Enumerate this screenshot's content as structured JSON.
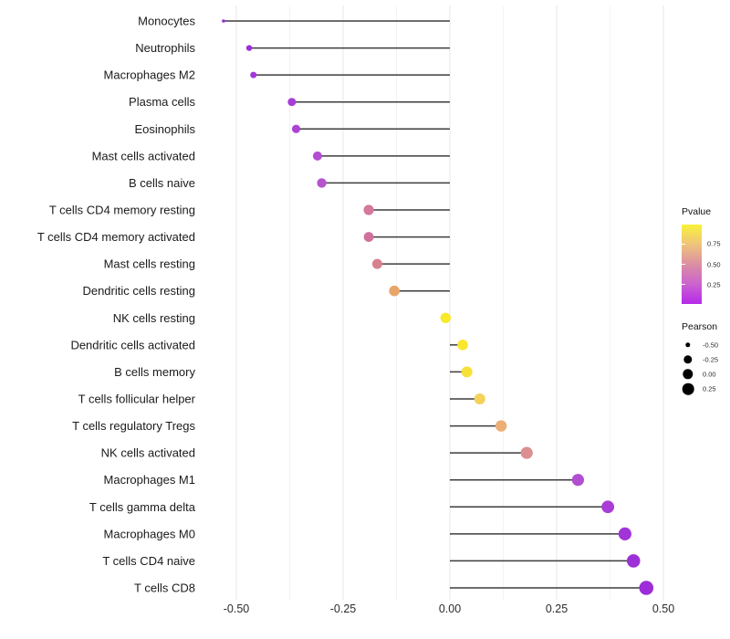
{
  "chart_data": {
    "type": "lollipop",
    "orientation": "horizontal",
    "title": "",
    "xlabel": "",
    "ylabel": "",
    "x_axis": {
      "tick_labels": [
        "-0.50",
        "-0.25",
        "0.00",
        "0.25",
        "0.50"
      ],
      "tick_values": [
        -0.5,
        -0.25,
        0,
        0.25,
        0.5
      ],
      "minor_tick_values": [
        -0.375,
        -0.125,
        0.125,
        0.375
      ],
      "range": [
        -0.57,
        0.52
      ],
      "grid": "on"
    },
    "points": [
      {
        "label": "Monocytes",
        "pearson": -0.53,
        "pvalue": 0.02,
        "color": "#9b2be0",
        "radius": 1.8
      },
      {
        "label": "Neutrophils",
        "pearson": -0.47,
        "pvalue": 0.03,
        "color": "#9e2ce0",
        "radius": 3.2
      },
      {
        "label": "Macrophages M2",
        "pearson": -0.46,
        "pvalue": 0.05,
        "color": "#a236da",
        "radius": 3.5
      },
      {
        "label": "Plasma cells",
        "pearson": -0.37,
        "pvalue": 0.08,
        "color": "#a83dd6",
        "radius": 4.5
      },
      {
        "label": "Eosinophils",
        "pearson": -0.36,
        "pvalue": 0.09,
        "color": "#ad43d5",
        "radius": 4.6
      },
      {
        "label": "Mast cells activated",
        "pearson": -0.31,
        "pvalue": 0.11,
        "color": "#b14ed1",
        "radius": 5.0
      },
      {
        "label": "B cells naive",
        "pearson": -0.3,
        "pvalue": 0.12,
        "color": "#b653cd",
        "radius": 5.2
      },
      {
        "label": "T cells CD4 memory resting",
        "pearson": -0.19,
        "pvalue": 0.42,
        "color": "#d3799c",
        "radius": 5.6
      },
      {
        "label": "T cells CD4 memory activated",
        "pearson": -0.19,
        "pvalue": 0.4,
        "color": "#d0719c",
        "radius": 5.4
      },
      {
        "label": "Mast cells resting",
        "pearson": -0.17,
        "pvalue": 0.45,
        "color": "#d8808f",
        "radius": 5.5
      },
      {
        "label": "Dendritic cells resting",
        "pearson": -0.13,
        "pvalue": 0.6,
        "color": "#e8a569",
        "radius": 5.8
      },
      {
        "label": "NK cells resting",
        "pearson": -0.01,
        "pvalue": 0.95,
        "color": "#f8e929",
        "radius": 5.7
      },
      {
        "label": "Dendritic cells activated",
        "pearson": 0.03,
        "pvalue": 0.93,
        "color": "#f9e72e",
        "radius": 5.8
      },
      {
        "label": "B cells memory",
        "pearson": 0.04,
        "pvalue": 0.9,
        "color": "#f7e03a",
        "radius": 6.0
      },
      {
        "label": "T cells follicular helper",
        "pearson": 0.07,
        "pvalue": 0.8,
        "color": "#f4d159",
        "radius": 6.0
      },
      {
        "label": "T cells regulatory  Tregs",
        "pearson": 0.12,
        "pvalue": 0.63,
        "color": "#ecae77",
        "radius": 6.2
      },
      {
        "label": "NK cells activated",
        "pearson": 0.18,
        "pvalue": 0.48,
        "color": "#db8f92",
        "radius": 6.6
      },
      {
        "label": "Macrophages M1",
        "pearson": 0.3,
        "pvalue": 0.13,
        "color": "#b14ed2",
        "radius": 6.6
      },
      {
        "label": "T cells gamma delta",
        "pearson": 0.37,
        "pvalue": 0.09,
        "color": "#a93dd6",
        "radius": 6.9
      },
      {
        "label": "Macrophages M0",
        "pearson": 0.41,
        "pvalue": 0.07,
        "color": "#a134d7",
        "radius": 7.1
      },
      {
        "label": "T cells CD4 naive",
        "pearson": 0.43,
        "pvalue": 0.06,
        "color": "#9e30d8",
        "radius": 7.3
      },
      {
        "label": "T cells CD8",
        "pearson": 0.46,
        "pvalue": 0.05,
        "color": "#9c2dd9",
        "radius": 7.8
      }
    ],
    "legend_pvalue": {
      "title": "Pvalue",
      "position": "right",
      "ticks": [
        {
          "label": "0.75",
          "frac_from_bottom": 0.76
        },
        {
          "label": "0.50",
          "frac_from_bottom": 0.505
        },
        {
          "label": "0.25",
          "frac_from_bottom": 0.25
        }
      ],
      "gradient_top_to_bottom": [
        "#f9f139",
        "#eec47b",
        "#dc8fa3",
        "#cb62cf",
        "#b62ae9"
      ],
      "value_range_bottom_to_top": [
        0,
        1
      ]
    },
    "legend_pearson": {
      "title": "Pearson",
      "position": "right",
      "dot_color": "#000000",
      "items": [
        {
          "label": "-0.50",
          "radius": 2.7
        },
        {
          "label": "-0.25",
          "radius": 4.7
        },
        {
          "label": "0.00",
          "radius": 5.7
        },
        {
          "label": "0.25",
          "radius": 6.3
        }
      ]
    }
  },
  "styles": {
    "stem_color": "#3d3d3d",
    "grid_major_color": "#e7e7e7",
    "grid_minor_color": "#f3f3f3",
    "y_label_color": "#1a1a1a",
    "x_label_color": "#2b2b2b",
    "background": "#ffffff"
  }
}
